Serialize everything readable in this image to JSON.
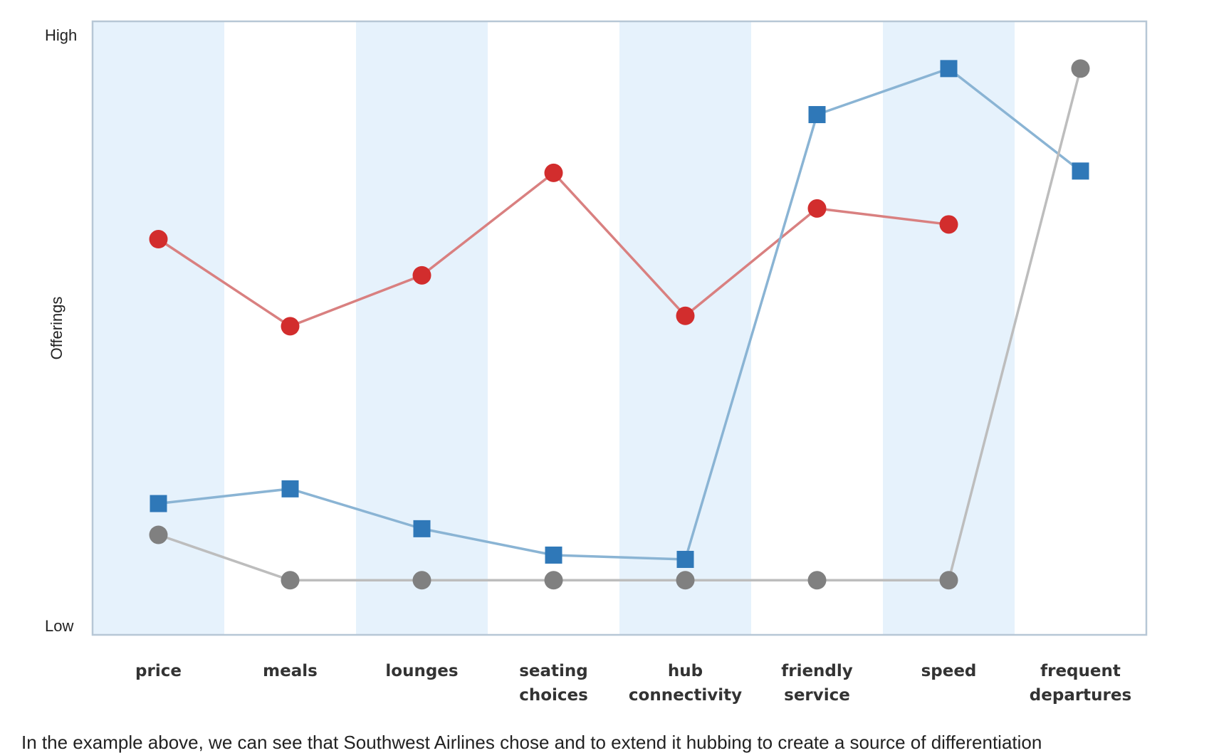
{
  "chart_data": {
    "type": "line",
    "title": "",
    "xlabel": "",
    "ylabel": "Offerings",
    "y_tick_labels": [
      "Low",
      "High"
    ],
    "ylim": [
      0,
      100
    ],
    "grid": false,
    "categories": [
      [
        "price"
      ],
      [
        "meals"
      ],
      [
        "lounges"
      ],
      [
        "seating",
        "choices"
      ],
      [
        "hub",
        "connectivity"
      ],
      [
        "friendly",
        "service"
      ],
      [
        "speed"
      ],
      [
        "frequent",
        "departures"
      ]
    ],
    "band_colors": [
      "#e6f2fc",
      "#ffffff"
    ],
    "series": [
      {
        "marker": "circle",
        "color": "#d22d2d",
        "line_color": "#d98080",
        "values": [
          64.5,
          50.3,
          58.6,
          75.3,
          52.0,
          69.5,
          66.9,
          null
        ]
      },
      {
        "marker": "square",
        "color": "#2f78b8",
        "line_color": "#8ab4d4",
        "values": [
          21.4,
          23.8,
          17.3,
          13.0,
          12.3,
          84.8,
          92.3,
          75.6
        ]
      },
      {
        "marker": "circle",
        "color": "#808080",
        "line_color": "#bdbdbd",
        "values": [
          16.3,
          8.9,
          8.9,
          8.9,
          8.9,
          8.9,
          8.9,
          92.3
        ]
      }
    ]
  },
  "caption": "In the example above, we can see that Southwest Airlines chose and to extend it hubbing to create a source of differentiation"
}
